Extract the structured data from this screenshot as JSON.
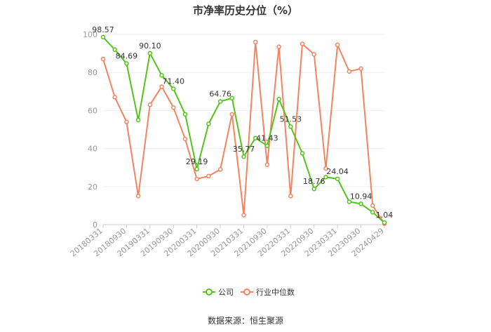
{
  "chart_data": {
    "type": "line",
    "title": "市净率历史分位（%）",
    "source": "数据来源：恒生聚源",
    "ylim": [
      0,
      100
    ],
    "yticks": [
      0,
      20,
      40,
      60,
      80,
      100
    ],
    "grid": true,
    "legend_position": "bottom",
    "x_tick_labels": [
      "20180331",
      "20180930",
      "20190331",
      "20190930",
      "20200331",
      "20200930",
      "20210331",
      "20210930",
      "20220331",
      "20220930",
      "20230331",
      "20230930",
      "20240429"
    ],
    "x_tick_index": [
      0,
      2,
      4,
      6,
      8,
      10,
      12,
      14,
      16,
      18,
      20,
      22,
      24
    ],
    "series": [
      {
        "name": "公司",
        "color": "#52c41a",
        "values": [
          98.57,
          92.0,
          84.69,
          55.0,
          90.1,
          78.5,
          71.4,
          58.0,
          29.19,
          53.0,
          64.76,
          66.5,
          35.77,
          45.5,
          41.43,
          66.0,
          51.53,
          37.5,
          18.76,
          25.0,
          24.04,
          12.0,
          10.94,
          6.5,
          1.04
        ],
        "labels": {
          "0": "98.57",
          "2": "84.69",
          "4": "90.10",
          "6": "71.40",
          "8": "29.19",
          "10": "64.76",
          "12": "35.77",
          "14": "41.43",
          "16": "51.53",
          "18": "18.76",
          "20": "24.04",
          "22": "10.94",
          "24": "1.04"
        }
      },
      {
        "name": "行业中位数",
        "color": "#f4845f",
        "values": [
          87.0,
          67.0,
          54.0,
          15.0,
          63.0,
          72.5,
          61.5,
          45.0,
          24.0,
          25.5,
          29.0,
          58.0,
          5.0,
          96.0,
          31.5,
          93.5,
          15.0,
          95.0,
          89.5,
          29.5,
          94.5,
          80.5,
          82.0,
          10.0,
          0.5
        ]
      }
    ]
  }
}
